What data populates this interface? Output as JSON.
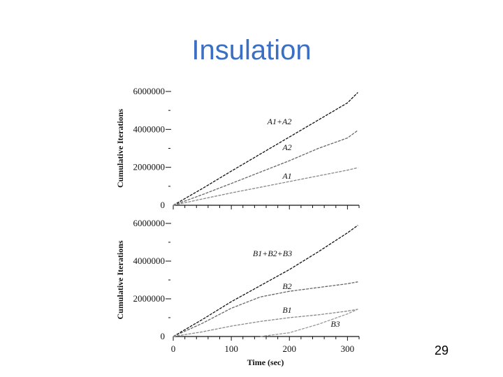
{
  "slide": {
    "title": "Insulation",
    "page_number": "29"
  },
  "chart_data": [
    {
      "type": "line",
      "title": "",
      "xlabel": "",
      "ylabel": "Cumulative Iterations",
      "xlim": [
        0,
        320
      ],
      "ylim": [
        0,
        6000000
      ],
      "ytick_labels": [
        "0",
        "2000000",
        "4000000",
        "6000000"
      ],
      "series": [
        {
          "name": "A1+A2",
          "color": "#111111",
          "x": [
            0,
            50,
            100,
            150,
            200,
            250,
            300,
            318
          ],
          "y": [
            0,
            880000,
            1800000,
            2700000,
            3600000,
            4500000,
            5400000,
            5950000
          ]
        },
        {
          "name": "A2",
          "color": "#666666",
          "x": [
            0,
            50,
            100,
            150,
            200,
            250,
            300,
            318
          ],
          "y": [
            0,
            560000,
            1150000,
            1750000,
            2350000,
            3000000,
            3550000,
            3950000
          ]
        },
        {
          "name": "A1",
          "color": "#888888",
          "x": [
            0,
            50,
            100,
            150,
            200,
            250,
            300,
            318
          ],
          "y": [
            0,
            330000,
            650000,
            950000,
            1250000,
            1550000,
            1850000,
            1980000
          ]
        }
      ]
    },
    {
      "type": "line",
      "title": "",
      "xlabel": "Time (sec)",
      "ylabel": "Cumulative Iterations",
      "xlim": [
        0,
        320
      ],
      "ylim": [
        0,
        6000000
      ],
      "ytick_labels": [
        "0",
        "2000000",
        "4000000",
        "6000000"
      ],
      "xtick_labels": [
        "0",
        "100",
        "200",
        "300"
      ],
      "series": [
        {
          "name": "B1+B2+B3",
          "color": "#111111",
          "x": [
            0,
            50,
            100,
            150,
            200,
            250,
            300,
            318
          ],
          "y": [
            0,
            900000,
            1850000,
            2700000,
            3550000,
            4500000,
            5500000,
            5900000
          ]
        },
        {
          "name": "B2",
          "color": "#666666",
          "x": [
            0,
            50,
            100,
            150,
            200,
            250,
            300,
            318
          ],
          "y": [
            0,
            700000,
            1500000,
            2100000,
            2400000,
            2600000,
            2800000,
            2900000
          ]
        },
        {
          "name": "B1",
          "color": "#888888",
          "x": [
            0,
            50,
            100,
            150,
            200,
            250,
            300,
            318
          ],
          "y": [
            0,
            250000,
            550000,
            800000,
            1000000,
            1150000,
            1350000,
            1450000
          ]
        },
        {
          "name": "B3",
          "color": "#999999",
          "x": [
            150,
            200,
            250,
            300,
            318
          ],
          "y": [
            0,
            200000,
            650000,
            1200000,
            1450000
          ]
        }
      ]
    }
  ]
}
